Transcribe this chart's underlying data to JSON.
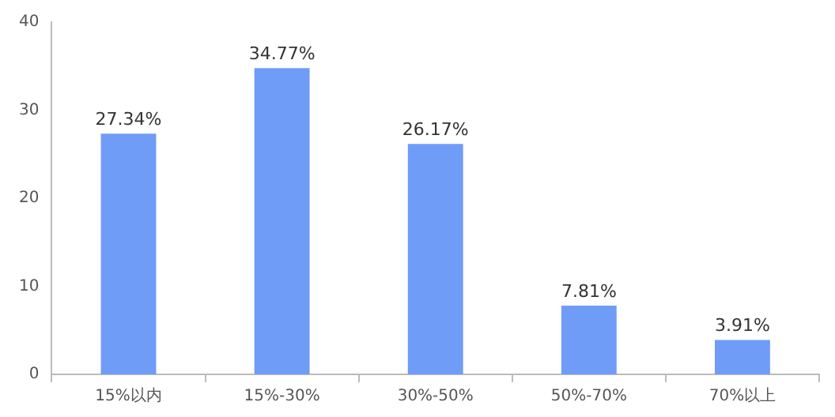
{
  "chart_data": {
    "type": "bar",
    "categories": [
      "15%以内",
      "15%-30%",
      "30%-50%",
      "50%-70%",
      "70%以上"
    ],
    "values": [
      27.34,
      34.77,
      26.17,
      7.81,
      3.91
    ],
    "value_labels": [
      "27.34%",
      "34.77%",
      "26.17%",
      "7.81%",
      "3.91%"
    ],
    "color": "#6f9cf7",
    "ylim": [
      0,
      40
    ],
    "yticks": [
      0,
      10,
      20,
      30,
      40
    ],
    "grid": false,
    "legend": false
  }
}
